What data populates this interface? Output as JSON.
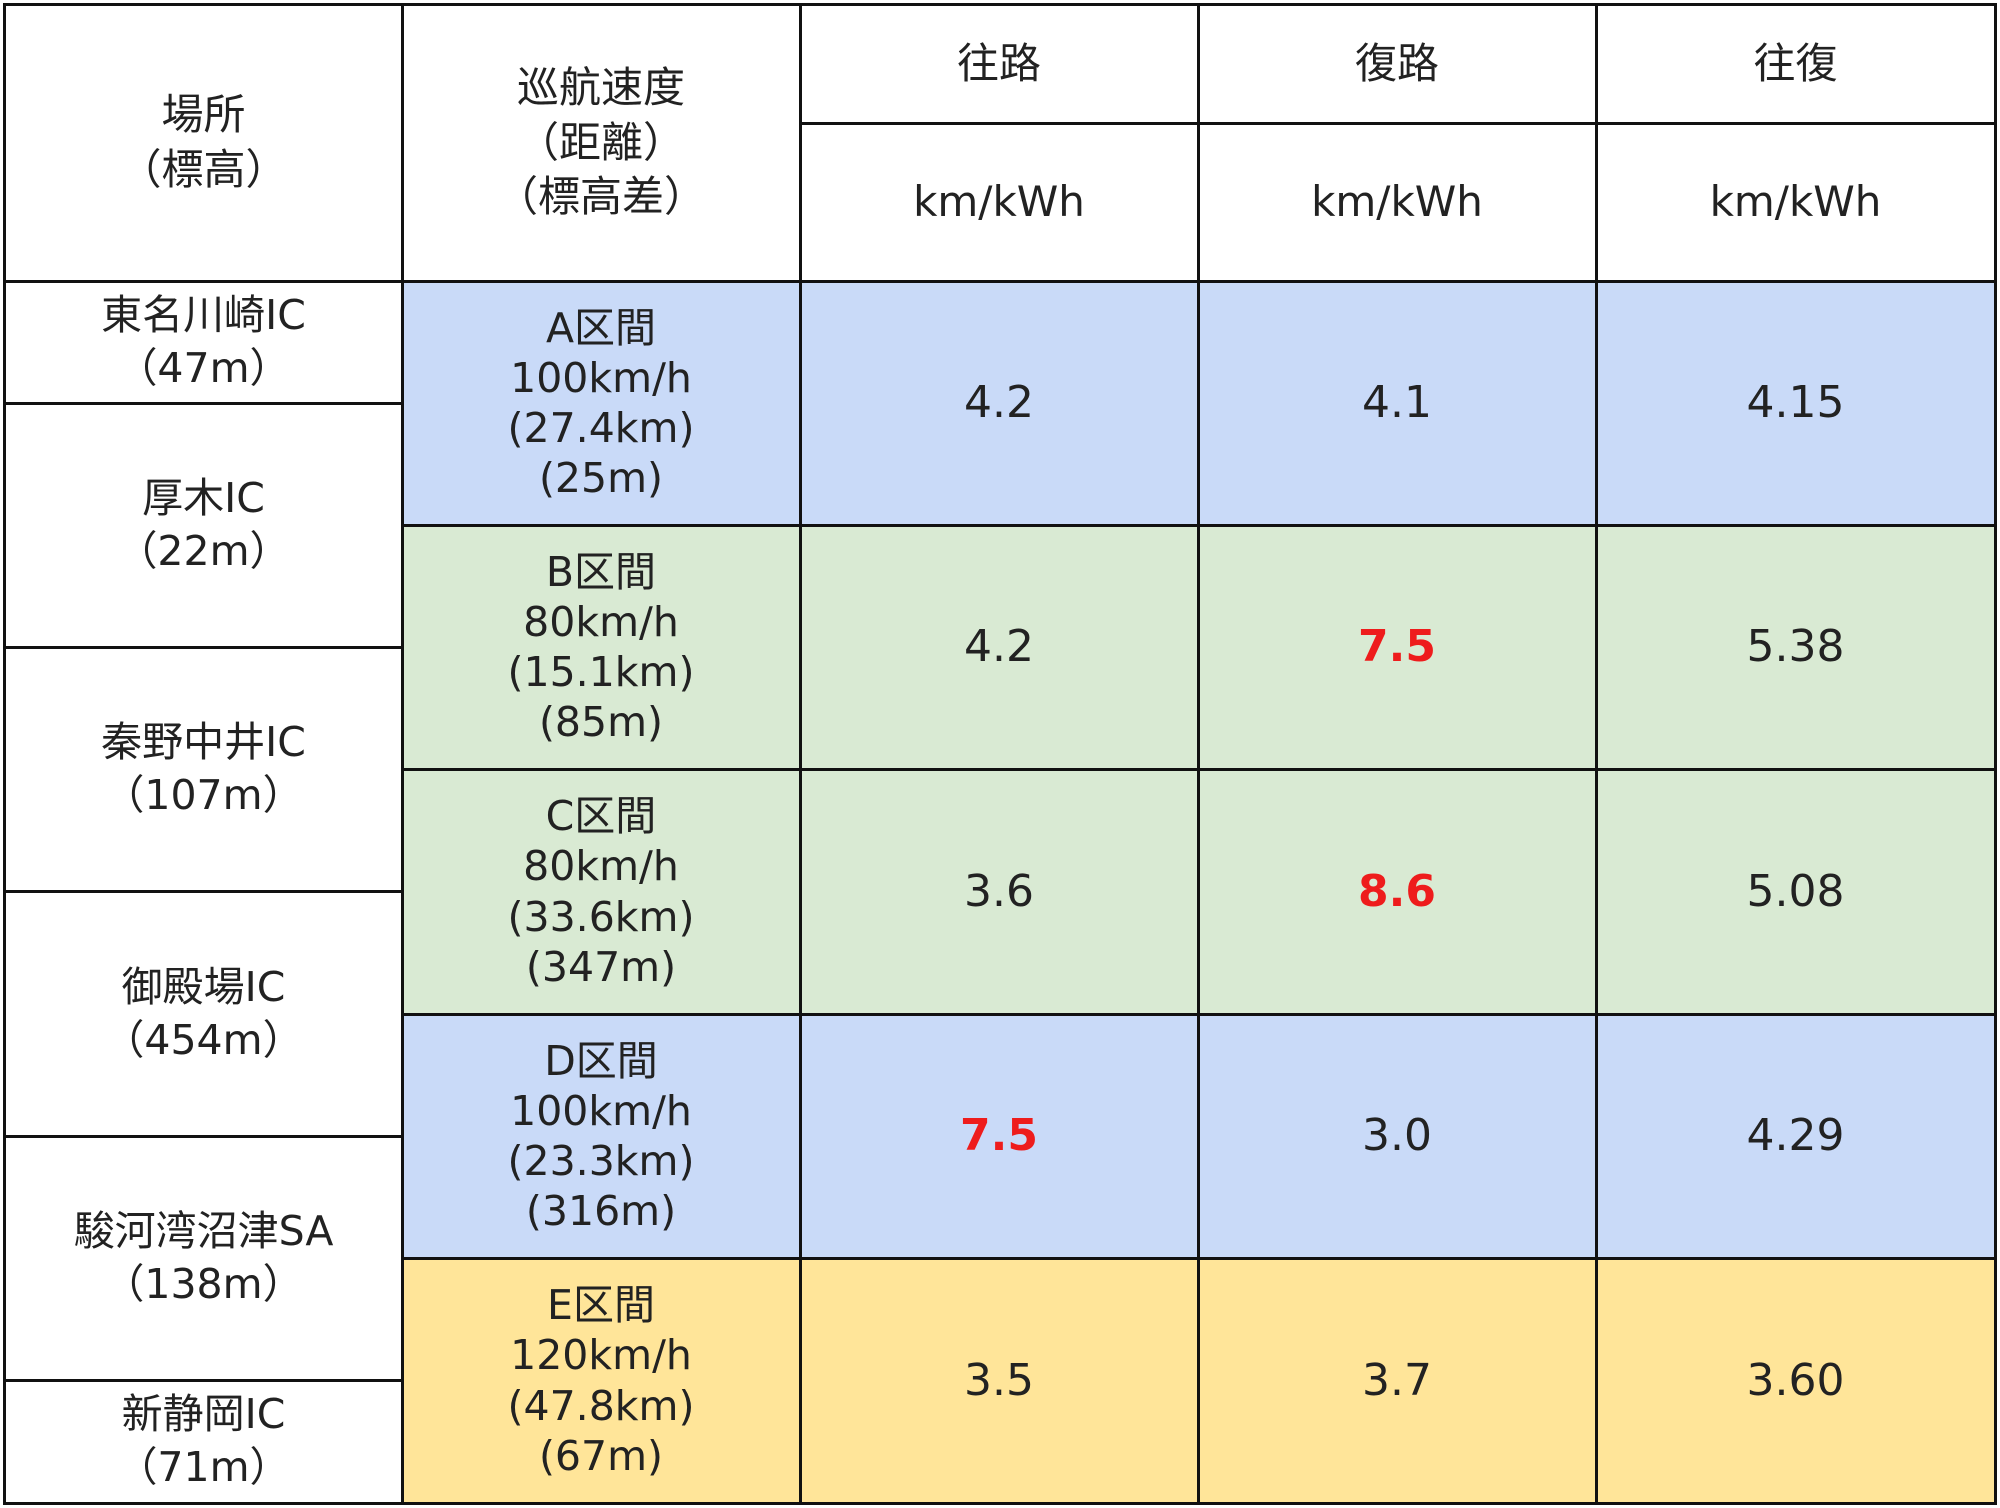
{
  "header": {
    "place": [
      "場所",
      "（標高）"
    ],
    "speed": [
      "巡航速度",
      "（距離）",
      "（標高差）"
    ],
    "outbound": "往路",
    "inbound": "復路",
    "round_trip": "往復",
    "unit": "km/kWh"
  },
  "locations": [
    [
      "東名川崎IC",
      "（47m）"
    ],
    [
      "厚木IC",
      "（22m）"
    ],
    [
      "秦野中井IC",
      "（107m）"
    ],
    [
      "御殿場IC",
      "（454m）"
    ],
    [
      "駿河湾沼津SA",
      "（138m）"
    ],
    [
      "新静岡IC",
      "（71m）"
    ]
  ],
  "segments": [
    {
      "lines": [
        "A区間",
        "100km/h",
        "(27.4km)",
        "(25m)"
      ],
      "outbound": "4.2",
      "inbound": "4.1",
      "round_trip": "4.15",
      "highlight": [
        false,
        false,
        false
      ],
      "color": "#c9daf8"
    },
    {
      "lines": [
        "B区間",
        "80km/h",
        "(15.1km)",
        "(85m)"
      ],
      "outbound": "4.2",
      "inbound": "7.5",
      "round_trip": "5.38",
      "highlight": [
        false,
        true,
        false
      ],
      "color": "#d9ead3"
    },
    {
      "lines": [
        "C区間",
        "80km/h",
        "(33.6km)",
        "(347m)"
      ],
      "outbound": "3.6",
      "inbound": "8.6",
      "round_trip": "5.08",
      "highlight": [
        false,
        true,
        false
      ],
      "color": "#d9ead3"
    },
    {
      "lines": [
        "D区間",
        "100km/h",
        "(23.3km)",
        "(316m)"
      ],
      "outbound": "7.5",
      "inbound": "3.0",
      "round_trip": "4.29",
      "highlight": [
        true,
        false,
        false
      ],
      "color": "#c9daf8"
    },
    {
      "lines": [
        "E区間",
        "120km/h",
        "(47.8km)",
        "(67m)"
      ],
      "outbound": "3.5",
      "inbound": "3.7",
      "round_trip": "3.60",
      "highlight": [
        false,
        false,
        false
      ],
      "color": "#ffe599"
    }
  ]
}
